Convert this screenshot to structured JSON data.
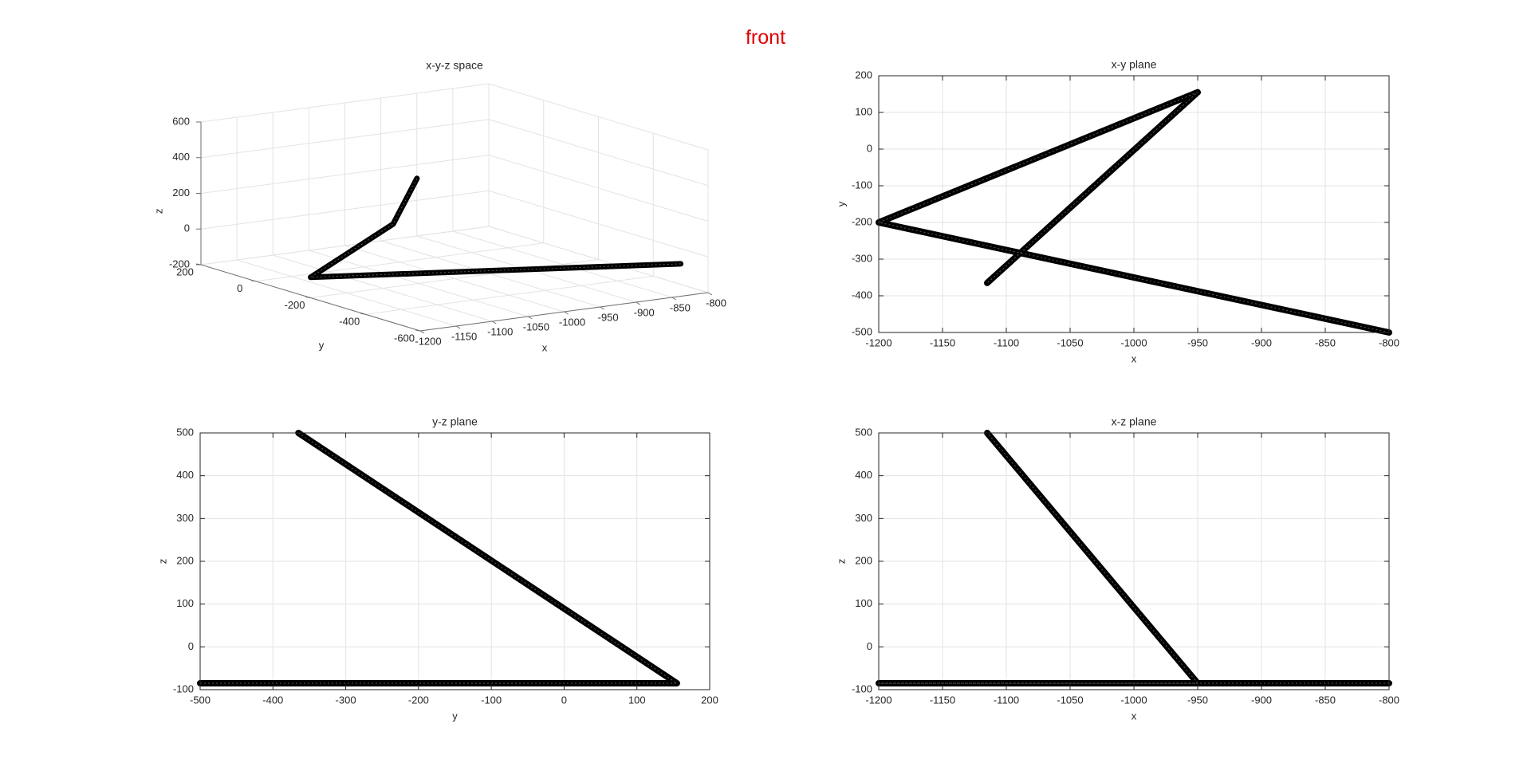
{
  "figure": {
    "title": "front",
    "title_color": "#e00000"
  },
  "style": {
    "line_color": "#000000",
    "grid_color": "#e3e3e3",
    "axis_color": "#262626",
    "box_color": "#6e6e6e"
  },
  "chart_data": [
    {
      "type": "line3d",
      "title": "x-y-z space",
      "xlabel": "x",
      "ylabel": "y",
      "zlabel": "z",
      "xlim": [
        -1200,
        -800
      ],
      "ylim": [
        -600,
        200
      ],
      "zlim": [
        -200,
        600
      ],
      "xticks": [
        -1200,
        -1150,
        -1100,
        -1050,
        -1000,
        -950,
        -900,
        -850,
        -800
      ],
      "yticks": [
        -600,
        -400,
        -200,
        0,
        200
      ],
      "zticks": [
        -200,
        0,
        200,
        400,
        600
      ],
      "grid": true,
      "x": [
        -800,
        -1200,
        -950,
        -1115
      ],
      "y": [
        -500,
        -200,
        155,
        -365
      ],
      "z": [
        -85,
        -85,
        -85,
        500
      ]
    },
    {
      "type": "line",
      "title": "x-y plane",
      "xlabel": "x",
      "ylabel": "y",
      "xlim": [
        -1200,
        -800
      ],
      "ylim": [
        -500,
        200
      ],
      "xticks": [
        -1200,
        -1150,
        -1100,
        -1050,
        -1000,
        -950,
        -900,
        -850,
        -800
      ],
      "yticks": [
        -500,
        -400,
        -300,
        -200,
        -100,
        0,
        100,
        200
      ],
      "grid": true,
      "x": [
        -800,
        -1200,
        -950,
        -1115
      ],
      "y": [
        -500,
        -200,
        155,
        -365
      ]
    },
    {
      "type": "line",
      "title": "y-z plane",
      "xlabel": "y",
      "ylabel": "z",
      "xlim": [
        -500,
        200
      ],
      "ylim": [
        -100,
        500
      ],
      "xticks": [
        -500,
        -400,
        -300,
        -200,
        -100,
        0,
        100,
        200
      ],
      "yticks": [
        -100,
        0,
        100,
        200,
        300,
        400,
        500
      ],
      "grid": true,
      "x": [
        -500,
        -200,
        155,
        -365
      ],
      "y": [
        -85,
        -85,
        -85,
        500
      ]
    },
    {
      "type": "line",
      "title": "x-z plane",
      "xlabel": "x",
      "ylabel": "z",
      "xlim": [
        -1200,
        -800
      ],
      "ylim": [
        -100,
        500
      ],
      "xticks": [
        -1200,
        -1150,
        -1100,
        -1050,
        -1000,
        -950,
        -900,
        -850,
        -800
      ],
      "yticks": [
        -100,
        0,
        100,
        200,
        300,
        400,
        500
      ],
      "grid": true,
      "x": [
        -800,
        -1200,
        -950,
        -1115
      ],
      "y": [
        -85,
        -85,
        -85,
        500
      ]
    }
  ]
}
